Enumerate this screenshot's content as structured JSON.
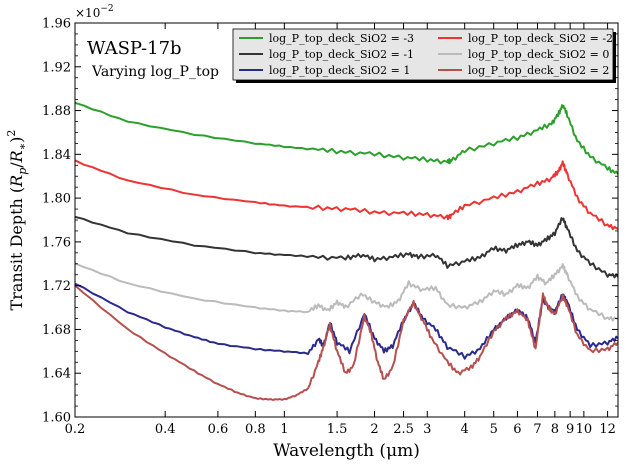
{
  "chart_data": {
    "type": "line",
    "title": "WASP-17b",
    "subtitle": "Varying log_P_top",
    "xlabel": "Wavelength (μm)",
    "ylabel": "Transit Depth (R_p/R_*)^2",
    "ylabel_parts": {
      "main": "Transit Depth ",
      "lp": "(",
      "r1": "R",
      "s1": "p",
      "sl": "/",
      "r2": "R",
      "s2": "∗",
      "rp": ")",
      "sq": "2"
    },
    "y_multiplier": "×10",
    "y_multiplier_exp": "−2",
    "x_scale": "log",
    "xlim": [
      0.2,
      13
    ],
    "ylim": [
      1.6,
      1.96
    ],
    "x_ticks": [
      0.2,
      0.4,
      0.6,
      0.8,
      1,
      1.5,
      2,
      2.5,
      3,
      4,
      5,
      6,
      7,
      8,
      9,
      10,
      12
    ],
    "x_tick_labels": [
      "0.2",
      "0.4",
      "0.6",
      "0.8",
      "1",
      "1.5",
      "2",
      "2.5",
      "3",
      "4",
      "5",
      "6",
      "7",
      "8",
      "9",
      "10",
      "12"
    ],
    "y_ticks": [
      1.6,
      1.64,
      1.68,
      1.72,
      1.76,
      1.8,
      1.84,
      1.88,
      1.92,
      1.96
    ],
    "y_tick_labels": [
      "1.60",
      "1.64",
      "1.68",
      "1.72",
      "1.76",
      "1.80",
      "1.84",
      "1.88",
      "1.92",
      "1.96"
    ],
    "legend_position": "top-right",
    "series": [
      {
        "name": "log_P_top_deck_SiO2 = -3",
        "color": "#2ca02c",
        "points": [
          [
            0.2,
            1.887
          ],
          [
            0.3,
            1.87
          ],
          [
            0.5,
            1.858
          ],
          [
            0.8,
            1.85
          ],
          [
            1.0,
            1.847
          ],
          [
            1.3,
            1.844
          ],
          [
            1.6,
            1.842
          ],
          [
            2.0,
            1.84
          ],
          [
            2.5,
            1.837
          ],
          [
            3.0,
            1.835
          ],
          [
            3.5,
            1.833
          ],
          [
            3.6,
            1.834
          ],
          [
            4.0,
            1.843
          ],
          [
            5.0,
            1.85
          ],
          [
            6.0,
            1.855
          ],
          [
            7.0,
            1.862
          ],
          [
            7.8,
            1.868
          ],
          [
            8.2,
            1.876
          ],
          [
            8.5,
            1.885
          ],
          [
            8.8,
            1.876
          ],
          [
            9.5,
            1.852
          ],
          [
            10.5,
            1.838
          ],
          [
            12.0,
            1.827
          ],
          [
            13.0,
            1.822
          ]
        ]
      },
      {
        "name": "log_P_top_deck_SiO2 = -2",
        "color": "#ee3333",
        "points": [
          [
            0.2,
            1.834
          ],
          [
            0.3,
            1.816
          ],
          [
            0.5,
            1.803
          ],
          [
            0.8,
            1.796
          ],
          [
            1.0,
            1.793
          ],
          [
            1.3,
            1.791
          ],
          [
            1.6,
            1.79
          ],
          [
            2.0,
            1.787
          ],
          [
            2.5,
            1.786
          ],
          [
            3.0,
            1.785
          ],
          [
            3.5,
            1.782
          ],
          [
            3.6,
            1.784
          ],
          [
            4.0,
            1.793
          ],
          [
            5.0,
            1.8
          ],
          [
            6.0,
            1.806
          ],
          [
            7.0,
            1.813
          ],
          [
            7.8,
            1.818
          ],
          [
            8.2,
            1.824
          ],
          [
            8.5,
            1.832
          ],
          [
            8.8,
            1.822
          ],
          [
            9.5,
            1.8
          ],
          [
            10.5,
            1.786
          ],
          [
            12.0,
            1.775
          ],
          [
            13.0,
            1.772
          ]
        ]
      },
      {
        "name": "log_P_top_deck_SiO2 = -1",
        "color": "#333333",
        "points": [
          [
            0.2,
            1.783
          ],
          [
            0.3,
            1.768
          ],
          [
            0.5,
            1.757
          ],
          [
            0.8,
            1.75
          ],
          [
            1.0,
            1.748
          ],
          [
            1.3,
            1.746
          ],
          [
            1.6,
            1.745
          ],
          [
            1.8,
            1.748
          ],
          [
            2.0,
            1.744
          ],
          [
            2.3,
            1.746
          ],
          [
            2.6,
            1.749
          ],
          [
            2.8,
            1.746
          ],
          [
            3.2,
            1.748
          ],
          [
            3.5,
            1.738
          ],
          [
            4.0,
            1.742
          ],
          [
            4.5,
            1.746
          ],
          [
            5.0,
            1.754
          ],
          [
            5.5,
            1.752
          ],
          [
            6.0,
            1.757
          ],
          [
            6.5,
            1.76
          ],
          [
            7.0,
            1.757
          ],
          [
            7.5,
            1.762
          ],
          [
            8.0,
            1.768
          ],
          [
            8.5,
            1.782
          ],
          [
            8.8,
            1.772
          ],
          [
            9.5,
            1.752
          ],
          [
            10.5,
            1.74
          ],
          [
            12.0,
            1.73
          ],
          [
            13.0,
            1.728
          ]
        ]
      },
      {
        "name": "log_P_top_deck_SiO2 = 0",
        "color": "#bbbbbb",
        "points": [
          [
            0.2,
            1.74
          ],
          [
            0.3,
            1.722
          ],
          [
            0.5,
            1.708
          ],
          [
            0.8,
            1.7
          ],
          [
            1.0,
            1.697
          ],
          [
            1.2,
            1.696
          ],
          [
            1.3,
            1.702
          ],
          [
            1.4,
            1.697
          ],
          [
            1.5,
            1.705
          ],
          [
            1.6,
            1.7
          ],
          [
            1.8,
            1.712
          ],
          [
            2.0,
            1.705
          ],
          [
            2.2,
            1.7
          ],
          [
            2.4,
            1.706
          ],
          [
            2.6,
            1.722
          ],
          [
            2.9,
            1.716
          ],
          [
            3.2,
            1.718
          ],
          [
            3.5,
            1.702
          ],
          [
            4.0,
            1.7
          ],
          [
            4.5,
            1.705
          ],
          [
            5.0,
            1.715
          ],
          [
            5.5,
            1.712
          ],
          [
            6.0,
            1.72
          ],
          [
            6.5,
            1.718
          ],
          [
            7.0,
            1.728
          ],
          [
            7.5,
            1.722
          ],
          [
            8.0,
            1.73
          ],
          [
            8.5,
            1.738
          ],
          [
            8.8,
            1.73
          ],
          [
            9.5,
            1.71
          ],
          [
            10.5,
            1.698
          ],
          [
            12.0,
            1.69
          ],
          [
            13.0,
            1.69
          ]
        ]
      },
      {
        "name": "log_P_top_deck_SiO2 = 1",
        "color": "#2a2a8c",
        "points": [
          [
            0.2,
            1.722
          ],
          [
            0.3,
            1.696
          ],
          [
            0.4,
            1.682
          ],
          [
            0.5,
            1.673
          ],
          [
            0.6,
            1.667
          ],
          [
            0.8,
            1.662
          ],
          [
            1.0,
            1.66
          ],
          [
            1.2,
            1.658
          ],
          [
            1.3,
            1.671
          ],
          [
            1.35,
            1.665
          ],
          [
            1.42,
            1.686
          ],
          [
            1.5,
            1.668
          ],
          [
            1.65,
            1.66
          ],
          [
            1.85,
            1.694
          ],
          [
            2.0,
            1.672
          ],
          [
            2.15,
            1.66
          ],
          [
            2.3,
            1.665
          ],
          [
            2.5,
            1.688
          ],
          [
            2.7,
            1.704
          ],
          [
            2.9,
            1.69
          ],
          [
            3.2,
            1.68
          ],
          [
            3.5,
            1.664
          ],
          [
            4.0,
            1.655
          ],
          [
            4.5,
            1.662
          ],
          [
            5.0,
            1.68
          ],
          [
            5.5,
            1.69
          ],
          [
            6.0,
            1.698
          ],
          [
            6.5,
            1.69
          ],
          [
            6.9,
            1.668
          ],
          [
            7.3,
            1.708
          ],
          [
            7.6,
            1.7
          ],
          [
            8.0,
            1.696
          ],
          [
            8.5,
            1.712
          ],
          [
            8.8,
            1.705
          ],
          [
            9.5,
            1.68
          ],
          [
            10.5,
            1.665
          ],
          [
            12.0,
            1.668
          ],
          [
            13.0,
            1.672
          ]
        ]
      },
      {
        "name": "log_P_top_deck_SiO2 = 2",
        "color": "#b5504e",
        "points": [
          [
            0.2,
            1.72
          ],
          [
            0.3,
            1.68
          ],
          [
            0.4,
            1.658
          ],
          [
            0.5,
            1.642
          ],
          [
            0.6,
            1.63
          ],
          [
            0.7,
            1.622
          ],
          [
            0.8,
            1.617
          ],
          [
            0.9,
            1.616
          ],
          [
            1.0,
            1.616
          ],
          [
            1.1,
            1.62
          ],
          [
            1.2,
            1.626
          ],
          [
            1.3,
            1.65
          ],
          [
            1.35,
            1.664
          ],
          [
            1.42,
            1.684
          ],
          [
            1.5,
            1.66
          ],
          [
            1.6,
            1.64
          ],
          [
            1.7,
            1.646
          ],
          [
            1.85,
            1.692
          ],
          [
            1.95,
            1.676
          ],
          [
            2.05,
            1.65
          ],
          [
            2.15,
            1.634
          ],
          [
            2.3,
            1.645
          ],
          [
            2.5,
            1.688
          ],
          [
            2.7,
            1.704
          ],
          [
            2.9,
            1.688
          ],
          [
            3.1,
            1.672
          ],
          [
            3.5,
            1.65
          ],
          [
            3.8,
            1.64
          ],
          [
            4.2,
            1.645
          ],
          [
            4.5,
            1.655
          ],
          [
            5.0,
            1.678
          ],
          [
            5.5,
            1.69
          ],
          [
            6.0,
            1.697
          ],
          [
            6.5,
            1.688
          ],
          [
            6.9,
            1.662
          ],
          [
            7.3,
            1.712
          ],
          [
            7.6,
            1.7
          ],
          [
            8.0,
            1.694
          ],
          [
            8.5,
            1.71
          ],
          [
            8.8,
            1.702
          ],
          [
            9.5,
            1.675
          ],
          [
            10.5,
            1.66
          ],
          [
            12.0,
            1.662
          ],
          [
            13.0,
            1.668
          ]
        ]
      }
    ]
  }
}
